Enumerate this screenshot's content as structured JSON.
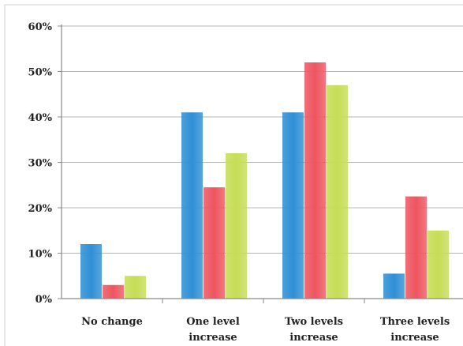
{
  "chart_data": {
    "type": "bar",
    "categories": [
      [
        "No change"
      ],
      [
        "One level",
        "increase"
      ],
      [
        "Two levels",
        "increase"
      ],
      [
        "Three levels",
        "increase"
      ]
    ],
    "series": [
      {
        "values": [
          12,
          41,
          41,
          5.5
        ],
        "color": "#2f8fd6"
      },
      {
        "values": [
          3,
          24.5,
          52,
          22.5
        ],
        "color": "#ee5560"
      },
      {
        "values": [
          5,
          32,
          47,
          15
        ],
        "color": "#c6dd55"
      }
    ],
    "ylim": [
      0,
      60
    ],
    "yticks": [
      0,
      10,
      20,
      30,
      40,
      50,
      60
    ],
    "ytick_labels": [
      "0%",
      "10%",
      "20%",
      "30%",
      "40%",
      "50%",
      "60%"
    ],
    "grid": true,
    "legend": "none"
  }
}
